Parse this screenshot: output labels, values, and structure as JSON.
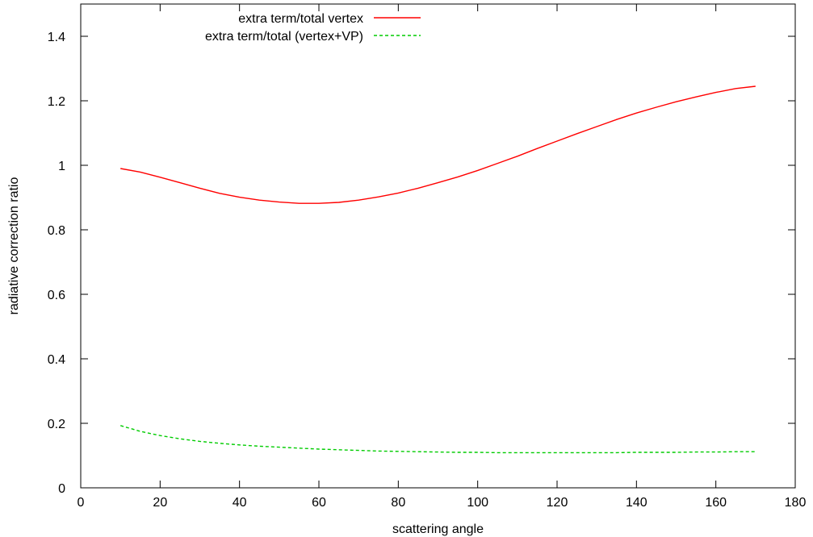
{
  "chart_data": {
    "type": "line",
    "title": "",
    "xlabel": "scattering angle",
    "ylabel": "radiative correction ratio",
    "xlim": [
      0,
      180
    ],
    "ylim": [
      0,
      1.5
    ],
    "xticks": [
      0,
      20,
      40,
      60,
      80,
      100,
      120,
      140,
      160,
      180
    ],
    "yticks": [
      0,
      0.2,
      0.4,
      0.6,
      0.8,
      1,
      1.2,
      1.4
    ],
    "grid": false,
    "legend_position": "top-center",
    "series": [
      {
        "name": "extra term/total vertex",
        "color": "#ff0000",
        "style": "solid",
        "x": [
          10,
          15,
          20,
          25,
          30,
          35,
          40,
          45,
          50,
          55,
          60,
          65,
          70,
          75,
          80,
          85,
          90,
          95,
          100,
          105,
          110,
          115,
          120,
          125,
          130,
          135,
          140,
          145,
          150,
          155,
          160,
          165,
          170
        ],
        "y": [
          0.99,
          0.979,
          0.963,
          0.946,
          0.929,
          0.913,
          0.901,
          0.892,
          0.886,
          0.882,
          0.882,
          0.885,
          0.892,
          0.902,
          0.914,
          0.929,
          0.946,
          0.964,
          0.984,
          1.006,
          1.028,
          1.052,
          1.075,
          1.098,
          1.12,
          1.142,
          1.162,
          1.18,
          1.197,
          1.212,
          1.226,
          1.238,
          1.245
        ]
      },
      {
        "name": "extra term/total (vertex+VP)",
        "color": "#00cc00",
        "style": "dashed",
        "x": [
          10,
          15,
          20,
          25,
          30,
          35,
          40,
          45,
          50,
          55,
          60,
          65,
          70,
          75,
          80,
          85,
          90,
          95,
          100,
          105,
          110,
          115,
          120,
          125,
          130,
          135,
          140,
          145,
          150,
          155,
          160,
          165,
          170
        ],
        "y": [
          0.193,
          0.175,
          0.162,
          0.152,
          0.144,
          0.138,
          0.133,
          0.129,
          0.126,
          0.123,
          0.12,
          0.118,
          0.116,
          0.114,
          0.113,
          0.112,
          0.111,
          0.11,
          0.11,
          0.109,
          0.109,
          0.109,
          0.109,
          0.109,
          0.109,
          0.109,
          0.11,
          0.11,
          0.11,
          0.111,
          0.111,
          0.112,
          0.112
        ]
      }
    ]
  }
}
